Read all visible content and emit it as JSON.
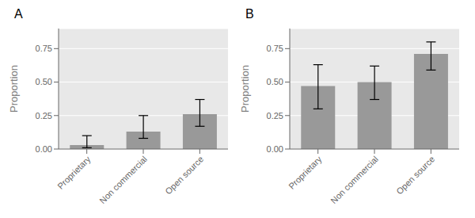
{
  "chart_data": [
    {
      "type": "bar",
      "title": "A",
      "categories": [
        "Proprietary",
        "Non commercial",
        "Open source"
      ],
      "values": [
        0.03,
        0.13,
        0.26
      ],
      "ci_lower": [
        0.01,
        0.08,
        0.17
      ],
      "ci_upper": [
        0.1,
        0.25,
        0.37
      ],
      "color": "#999999",
      "ylabel": "Proportion",
      "ylim": [
        0.0,
        0.9
      ],
      "yticks": [
        {
          "value": 0.0,
          "label": "0.00"
        },
        0.25,
        {
          "value": 0.5,
          "label": "0.50"
        },
        0.75
      ],
      "grid": true
    },
    {
      "type": "bar",
      "title": "B",
      "categories": [
        "Proprietary",
        "Non commercial",
        "Open source"
      ],
      "values": [
        0.47,
        0.5,
        0.71
      ],
      "ci_lower": [
        0.3,
        0.37,
        0.59
      ],
      "ci_upper": [
        0.63,
        0.62,
        0.8
      ],
      "color": "#999999",
      "ylabel": "Proportion",
      "ylim": [
        0.0,
        0.9
      ],
      "yticks": [
        {
          "value": 0.0,
          "label": "0.00"
        },
        0.25,
        {
          "value": 0.5,
          "label": "0.50"
        },
        0.75
      ],
      "grid": true
    }
  ]
}
